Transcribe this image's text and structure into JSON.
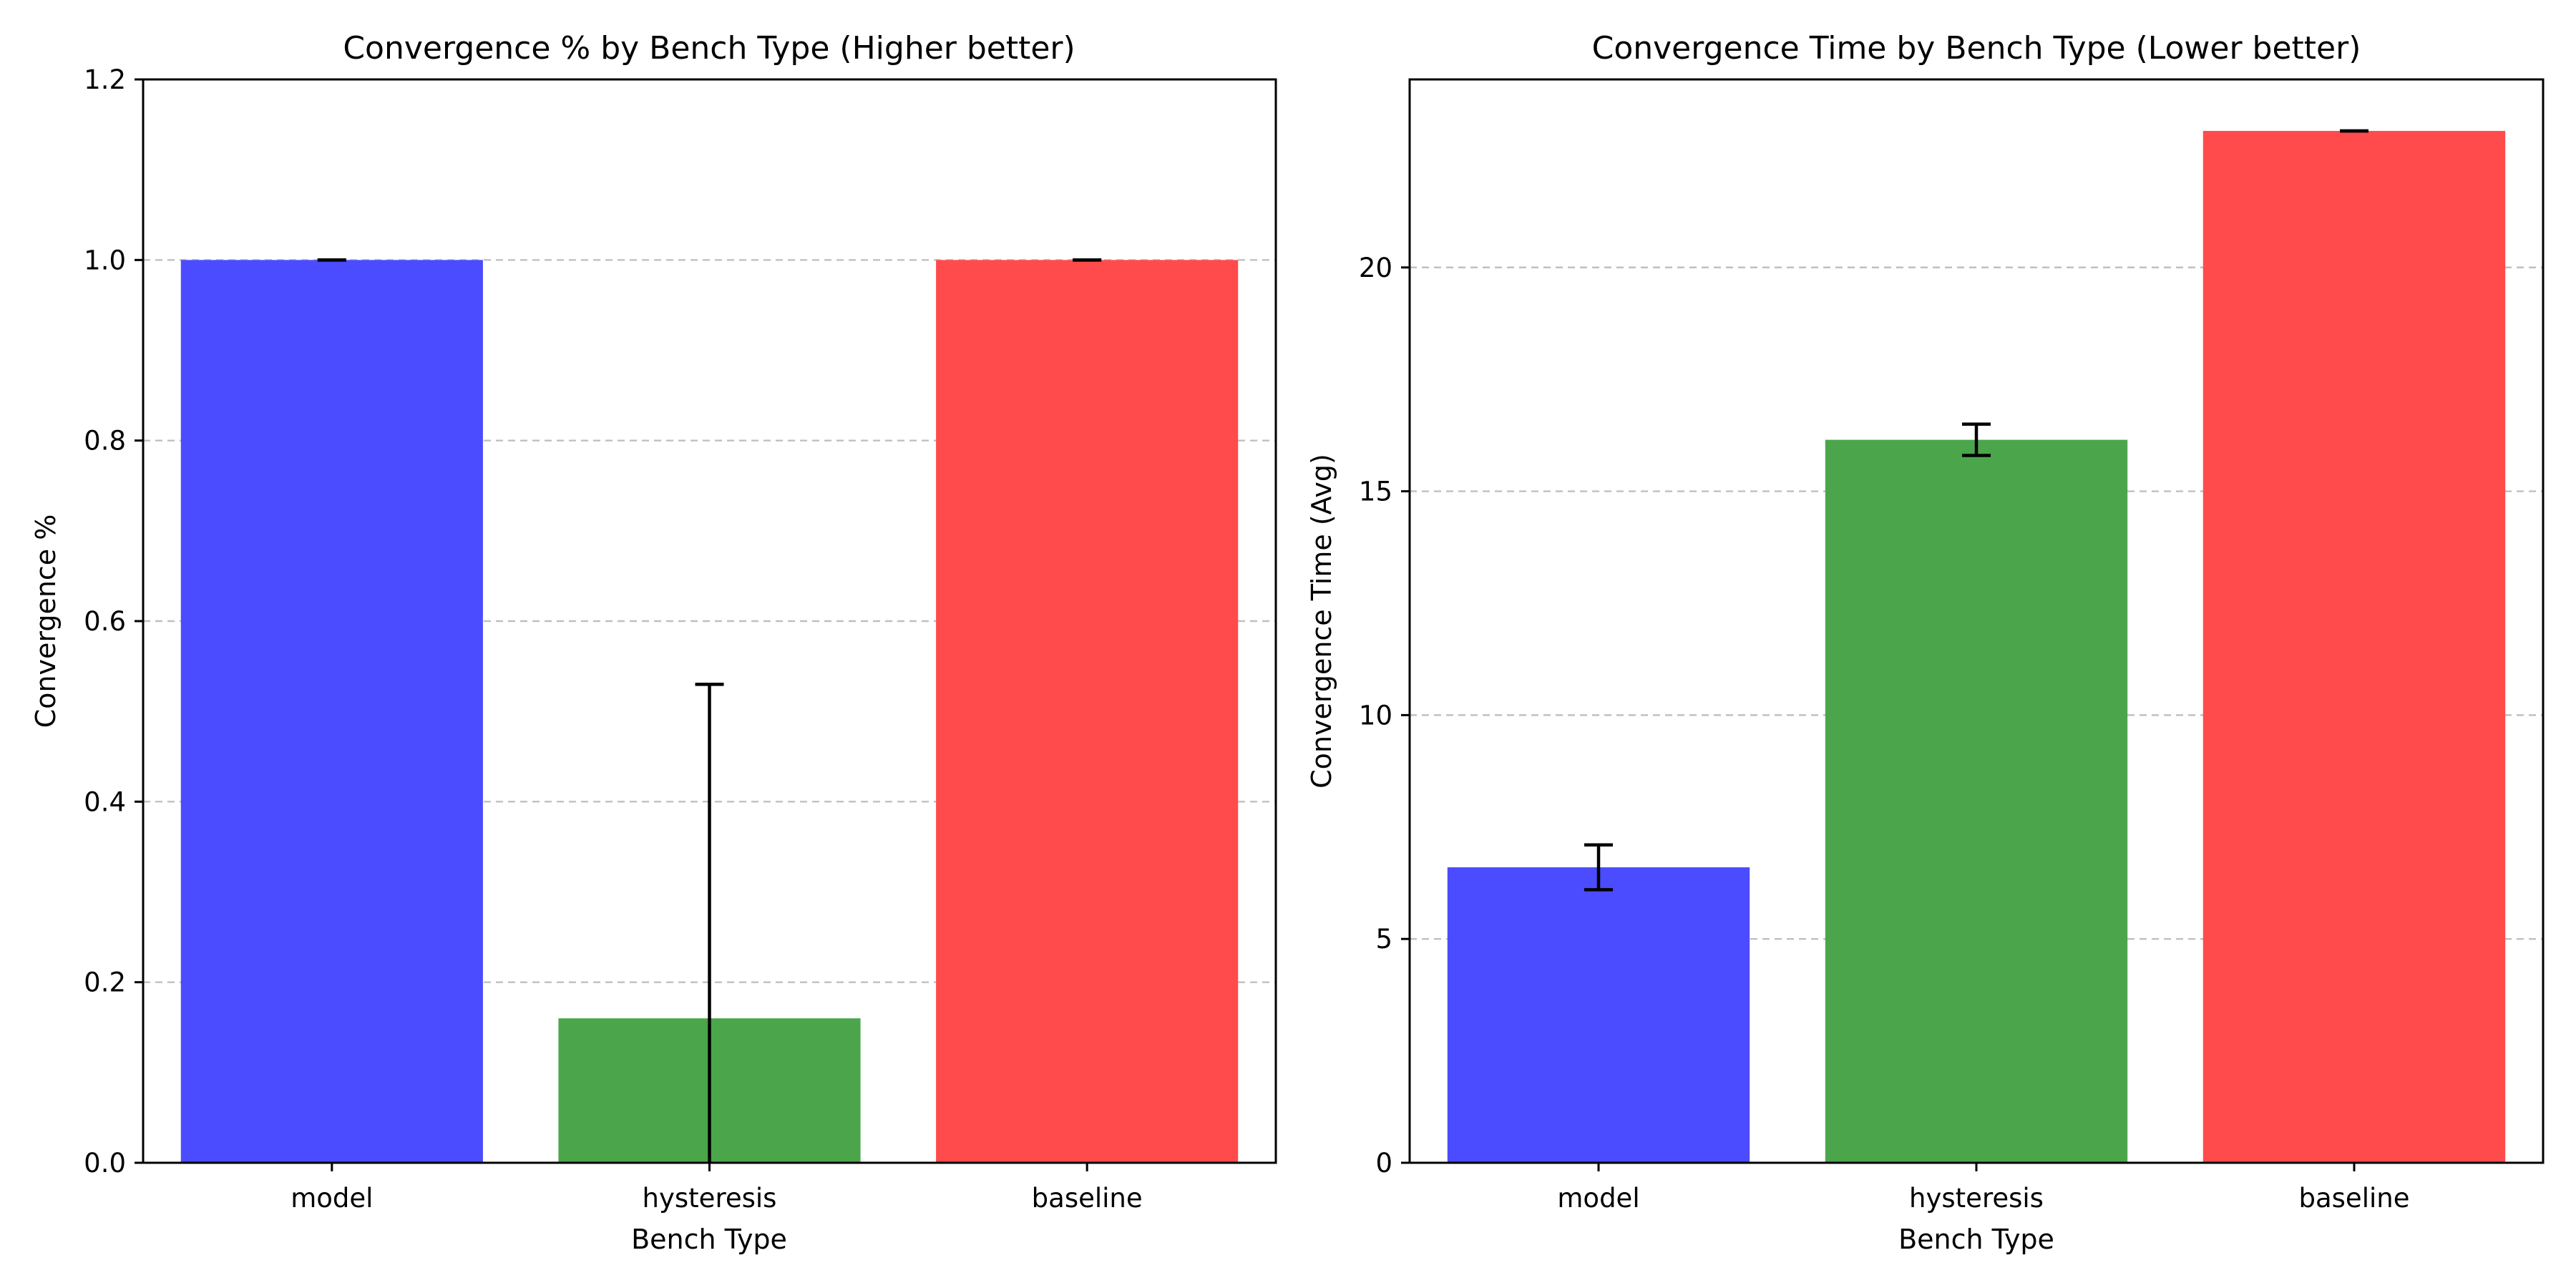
{
  "chart_data": [
    {
      "type": "bar",
      "title": "Convergence % by Bench Type (Higher better)",
      "xlabel": "Bench Type",
      "ylabel": "Convergence %",
      "categories": [
        "model",
        "hysteresis",
        "baseline"
      ],
      "values": [
        1.0,
        0.16,
        1.0
      ],
      "errors": [
        0.0,
        0.37,
        0.0
      ],
      "colors": [
        "#4b4bff",
        "#4ba64b",
        "#ff4b4b"
      ],
      "ylim": [
        0,
        1.2
      ],
      "yticks": [
        0.0,
        0.2,
        0.4,
        0.6,
        0.8,
        1.0,
        1.2
      ],
      "ytick_labels": [
        "0.0",
        "0.2",
        "0.4",
        "0.6",
        "0.8",
        "1.0",
        "1.2"
      ],
      "grid": "y-dashed",
      "legend": "none"
    },
    {
      "type": "bar",
      "title": "Convergence Time by Bench Type (Lower better)",
      "xlabel": "Bench Type",
      "ylabel": "Convergence Time (Avg)",
      "categories": [
        "model",
        "hysteresis",
        "baseline"
      ],
      "values": [
        6.6,
        16.15,
        23.05
      ],
      "errors": [
        0.5,
        0.35,
        0.0
      ],
      "colors": [
        "#4b4bff",
        "#4ba64b",
        "#ff4b4b"
      ],
      "ylim": [
        0,
        24.2
      ],
      "yticks": [
        0,
        5,
        10,
        15,
        20
      ],
      "ytick_labels": [
        "0",
        "5",
        "10",
        "15",
        "20"
      ],
      "grid": "y-dashed",
      "legend": "none"
    }
  ]
}
